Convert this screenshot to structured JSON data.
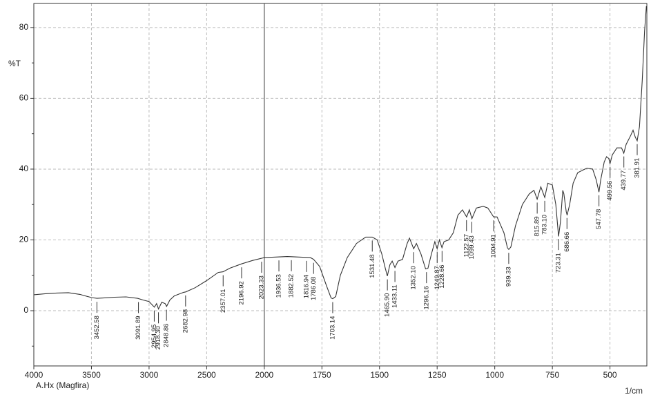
{
  "chart_data": {
    "type": "line",
    "ylabel": "%T",
    "xlabel": "1/cm",
    "sample": "A.Hx (Magfira)",
    "color": "#333333",
    "grid": true,
    "x_scale_break": 2000,
    "xlim": [
      4000,
      340
    ],
    "xticks": [
      4000,
      3500,
      3000,
      2500,
      2000,
      1750,
      1500,
      1250,
      1000,
      750,
      500
    ],
    "ylim": [
      -15.6,
      86.8
    ],
    "yticks": [
      0,
      20,
      40,
      60,
      80
    ],
    "yminor_ticks": [
      -10,
      10,
      30,
      50,
      70
    ],
    "x": [
      4000,
      3900,
      3800,
      3700,
      3600,
      3500,
      3452,
      3400,
      3300,
      3200,
      3100,
      3050,
      3000,
      2954,
      2935,
      2918,
      2890,
      2860,
      2848,
      2820,
      2780,
      2700,
      2682,
      2600,
      2500,
      2400,
      2357,
      2300,
      2200,
      2100,
      2000,
      1900,
      1800,
      1786,
      1760,
      1730,
      1710,
      1703,
      1690,
      1670,
      1640,
      1600,
      1560,
      1531,
      1510,
      1490,
      1475,
      1466,
      1455,
      1445,
      1433,
      1420,
      1400,
      1380,
      1370,
      1352,
      1340,
      1320,
      1300,
      1290,
      1275,
      1260,
      1250,
      1240,
      1229,
      1220,
      1200,
      1180,
      1160,
      1140,
      1122,
      1110,
      1099,
      1080,
      1050,
      1030,
      1015,
      1005,
      990,
      960,
      945,
      939,
      930,
      910,
      880,
      850,
      830,
      816,
      800,
      783,
      770,
      750,
      735,
      723,
      715,
      705,
      700,
      690,
      686,
      675,
      660,
      640,
      600,
      575,
      560,
      548,
      540,
      525,
      515,
      505,
      500,
      490,
      470,
      450,
      440,
      430,
      410,
      400,
      390,
      382,
      372,
      360,
      350,
      342
    ],
    "values": [
      4.5,
      4.8,
      5.0,
      5.1,
      4.6,
      3.7,
      3.5,
      3.6,
      3.8,
      3.9,
      3.5,
      3.0,
      2.6,
      1.0,
      2.0,
      0.5,
      2.4,
      2.0,
      1.2,
      3.0,
      4.2,
      5.2,
      5.3,
      6.5,
      8.5,
      10.8,
      11.0,
      12.0,
      13.2,
      14.2,
      15.0,
      15.3,
      15.0,
      14.5,
      12.5,
      7,
      3.6,
      3.4,
      4,
      10,
      15,
      19,
      20.8,
      20.8,
      20,
      16,
      12,
      9.8,
      13,
      14,
      12.2,
      14,
      14.5,
      19,
      20.5,
      17.5,
      19,
      16,
      11.8,
      12,
      16,
      19.5,
      17.5,
      20,
      17.8,
      19.5,
      20,
      22,
      27,
      28.5,
      26.5,
      28.5,
      26,
      29,
      29.5,
      29,
      27.5,
      26.5,
      26.5,
      22,
      17.8,
      17.3,
      18,
      24,
      30,
      33,
      34,
      31.5,
      35,
      32,
      36,
      35.5,
      30,
      21,
      25,
      34,
      33,
      28,
      27,
      30,
      36,
      39,
      40.3,
      40,
      37,
      33.5,
      37,
      42,
      43.5,
      43,
      41.5,
      44,
      46,
      46,
      44.5,
      47,
      49.5,
      51,
      49,
      48,
      52,
      65,
      79,
      86
    ],
    "peaks": {
      "x": [
        3452.58,
        3091.89,
        2954.95,
        2918.3,
        2848.86,
        2682.98,
        2357.01,
        2196.92,
        2023.33,
        1936.53,
        1882.52,
        1816.94,
        1786.08,
        1703.14,
        1531.48,
        1465.9,
        1433.11,
        1352.1,
        1296.16,
        1249.87,
        1228.66,
        1122.57,
        1099.43,
        1004.91,
        939.33,
        815.89,
        783.1,
        723.31,
        686.66,
        547.78,
        499.56,
        439.77,
        381.91
      ],
      "labels": [
        "3452.58",
        "3091.89",
        "2954.95",
        "2918.30",
        "2848.86",
        "2682.98",
        "2357.01",
        "2196.92",
        "2023.33",
        "1936.53",
        "1882.52",
        "1816.94",
        "1786.08",
        "1703.14",
        "1531.48",
        "1465.90",
        "1433.11",
        "1352.10",
        "1296.16",
        "1249.87",
        "1228.66",
        "1122.57",
        "1099.43",
        "1004.91",
        "939.33",
        "815.89",
        "783.10",
        "723.31",
        "686.66",
        "547.78",
        "499.56",
        "439.77",
        "381.91"
      ]
    }
  }
}
